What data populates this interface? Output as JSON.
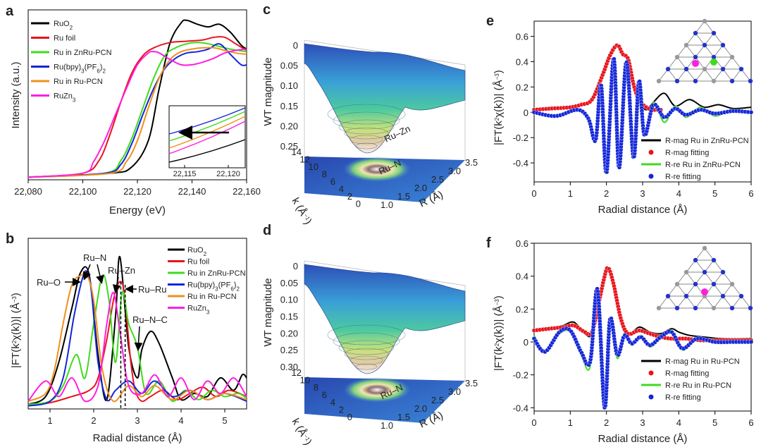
{
  "figure": {
    "panel_labels": [
      "a",
      "b",
      "c",
      "d",
      "e",
      "f"
    ],
    "colors": {
      "RuO2": "#000000",
      "Ru foil": "#e8141c",
      "Ru in ZnRu-PCN": "#3ddc1c",
      "Ru(bpy)3(PF6)2": "#1426d8",
      "Ru in Ru-PCN": "#f0901c",
      "RuZn3": "#ff1ee0"
    }
  },
  "legend_entries": [
    "RuO2",
    "Ru foil",
    "Ru in ZnRu-PCN",
    "Ru(bpy)3(PF6)2",
    "Ru in Ru-PCN",
    "RuZn3"
  ],
  "chart_data": [
    {
      "id": "a",
      "type": "line",
      "xlabel": "Energy (eV)",
      "ylabel": "Intensity (a.u.)",
      "xlim": [
        22080,
        22160
      ],
      "ylim": [
        0,
        1.3
      ],
      "xticks": [
        "22,080",
        "22,100",
        "22,120",
        "22,140",
        "22,160"
      ],
      "series": [
        {
          "name": "RuO2",
          "x": [
            22080,
            22110,
            22118,
            22124,
            22128,
            22132,
            22136,
            22138,
            22142,
            22146,
            22150,
            22154,
            22158,
            22160
          ],
          "y": [
            0.02,
            0.05,
            0.1,
            0.3,
            0.7,
            1.05,
            1.2,
            1.22,
            1.19,
            1.17,
            1.19,
            1.13,
            1.03,
            1.0
          ]
        },
        {
          "name": "Ru foil",
          "x": [
            22080,
            22100,
            22106,
            22110,
            22114,
            22118,
            22122,
            22126,
            22132,
            22138,
            22144,
            22148,
            22152,
            22156,
            22160
          ],
          "y": [
            0.02,
            0.05,
            0.15,
            0.35,
            0.6,
            0.82,
            0.95,
            1.01,
            1.05,
            1.06,
            1.07,
            1.09,
            1.09,
            1.04,
            0.99
          ]
        },
        {
          "name": "Ru in ZnRu-PCN",
          "x": [
            22080,
            22108,
            22114,
            22118,
            22122,
            22126,
            22130,
            22134,
            22138,
            22142,
            22146,
            22150,
            22154,
            22160
          ],
          "y": [
            0.02,
            0.05,
            0.15,
            0.32,
            0.55,
            0.78,
            0.95,
            1.01,
            1.04,
            1.05,
            1.04,
            1.02,
            1.0,
            0.98
          ]
        },
        {
          "name": "Ru(bpy)3(PF6)2",
          "x": [
            22080,
            22108,
            22114,
            22118,
            22122,
            22126,
            22130,
            22134,
            22138,
            22142,
            22146,
            22150,
            22154,
            22158,
            22160
          ],
          "y": [
            0.02,
            0.05,
            0.12,
            0.28,
            0.5,
            0.7,
            0.85,
            0.93,
            0.97,
            0.98,
            1.0,
            1.04,
            0.96,
            0.88,
            0.88
          ]
        },
        {
          "name": "Ru in Ru-PCN",
          "x": [
            22080,
            22110,
            22116,
            22120,
            22124,
            22128,
            22132,
            22136,
            22140,
            22144,
            22148,
            22152,
            22156,
            22160
          ],
          "y": [
            0.02,
            0.05,
            0.14,
            0.3,
            0.55,
            0.78,
            0.92,
            0.98,
            1.0,
            1.01,
            1.01,
            0.99,
            0.97,
            0.96
          ]
        },
        {
          "name": "RuZn3",
          "x": [
            22080,
            22100,
            22104,
            22108,
            22112,
            22116,
            22120,
            22124,
            22126,
            22128,
            22132,
            22136,
            22140,
            22144,
            22148,
            22152,
            22156,
            22160
          ],
          "y": [
            0.02,
            0.05,
            0.14,
            0.3,
            0.5,
            0.7,
            0.88,
            0.97,
            0.98,
            0.97,
            0.92,
            0.88,
            0.88,
            0.9,
            0.93,
            0.97,
            0.99,
            1.0
          ]
        }
      ],
      "inset": {
        "xticks": [
          "22,115",
          "22,120"
        ],
        "arrow": "leftward"
      }
    },
    {
      "id": "b",
      "type": "line",
      "xlabel": "Radial distance (Å)",
      "ylabel": "|FT(k²χ(k))| (Å⁻³)",
      "xlim": [
        0.5,
        5.5
      ],
      "ylim": [
        0,
        1.1
      ],
      "xticks": [
        "1",
        "2",
        "3",
        "4",
        "5"
      ],
      "annotations": [
        "Ru–O",
        "Ru–N",
        "Ru–Zn",
        "Ru–Ru",
        "Ru–N–C"
      ],
      "series": [
        {
          "name": "RuO2",
          "x": [
            0.5,
            0.9,
            1.2,
            1.5,
            1.7,
            1.9,
            2.1,
            2.3,
            2.5,
            2.6,
            2.8,
            3.0,
            3.1,
            3.3,
            3.5,
            3.8,
            4.0,
            4.3,
            4.6,
            4.9,
            5.2,
            5.4,
            5.5
          ],
          "y": [
            0.03,
            0.08,
            0.3,
            0.65,
            0.88,
            0.86,
            0.35,
            0.06,
            0.6,
            0.98,
            0.4,
            0.2,
            0.38,
            0.5,
            0.42,
            0.2,
            0.06,
            0.1,
            0.08,
            0.2,
            0.12,
            0.22,
            0.2
          ]
        },
        {
          "name": "Ru foil",
          "x": [
            0.5,
            1.0,
            1.5,
            1.9,
            2.1,
            2.3,
            2.45,
            2.55,
            2.62,
            2.68,
            2.75,
            2.85,
            2.95,
            3.1,
            3.3,
            3.6,
            3.9,
            4.2,
            4.5,
            4.8,
            5.1,
            5.5
          ],
          "y": [
            0.02,
            0.04,
            0.08,
            0.12,
            0.2,
            0.45,
            0.7,
            0.8,
            0.82,
            0.78,
            0.6,
            0.3,
            0.12,
            0.05,
            0.08,
            0.12,
            0.06,
            0.1,
            0.14,
            0.08,
            0.12,
            0.08
          ]
        },
        {
          "name": "Ru in ZnRu-PCN",
          "x": [
            0.5,
            1.0,
            1.3,
            1.6,
            1.8,
            2.0,
            2.2,
            2.35,
            2.5,
            2.65,
            2.8,
            3.0,
            3.2,
            3.5,
            3.8,
            4.1,
            4.4,
            4.7,
            5.0,
            5.3,
            5.5
          ],
          "y": [
            0.03,
            0.05,
            0.15,
            0.35,
            0.2,
            0.55,
            0.86,
            0.7,
            0.3,
            0.75,
            0.55,
            0.4,
            0.1,
            0.18,
            0.05,
            0.12,
            0.06,
            0.12,
            0.08,
            0.1,
            0.07
          ]
        },
        {
          "name": "Ru(bpy)3(PF6)2",
          "x": [
            0.5,
            1.0,
            1.3,
            1.55,
            1.75,
            1.85,
            1.95,
            2.1,
            2.3,
            2.5,
            2.8,
            3.1,
            3.4,
            3.8,
            4.2,
            4.6,
            5.0,
            5.5
          ],
          "y": [
            0.02,
            0.05,
            0.2,
            0.6,
            0.85,
            0.88,
            0.75,
            0.3,
            0.06,
            0.12,
            0.18,
            0.1,
            0.18,
            0.08,
            0.12,
            0.06,
            0.1,
            0.05
          ]
        },
        {
          "name": "Ru in Ru-PCN",
          "x": [
            0.5,
            0.9,
            1.1,
            1.3,
            1.5,
            1.7,
            1.85,
            2.0,
            2.2,
            2.45,
            2.8,
            3.1,
            3.4,
            3.8,
            4.2,
            4.6,
            5.0,
            5.5
          ],
          "y": [
            0.05,
            0.1,
            0.25,
            0.55,
            0.8,
            0.86,
            0.86,
            0.7,
            0.25,
            0.05,
            0.15,
            0.08,
            0.15,
            0.06,
            0.12,
            0.06,
            0.1,
            0.06
          ]
        },
        {
          "name": "RuZn3",
          "x": [
            0.5,
            0.9,
            1.2,
            1.5,
            1.8,
            2.1,
            2.3,
            2.45,
            2.6,
            2.8,
            3.1,
            3.4,
            3.7,
            4.0,
            4.3,
            4.6,
            4.9,
            5.2,
            5.5
          ],
          "y": [
            0.05,
            0.18,
            0.08,
            0.2,
            0.05,
            0.15,
            0.55,
            0.75,
            0.5,
            0.15,
            0.1,
            0.22,
            0.08,
            0.2,
            0.06,
            0.18,
            0.1,
            0.2,
            0.08
          ]
        }
      ]
    },
    {
      "id": "c",
      "type": "surface",
      "zlabel": "WT magnitude",
      "xlabel": "R (Å)",
      "ylabel": "k (Å⁻¹)",
      "zticks": [
        "0",
        "0.05",
        "0.10",
        "0.15",
        "0.20",
        "0.25"
      ],
      "kticks": [
        "14",
        "12",
        "10",
        "8",
        "6",
        "4",
        "2",
        "0"
      ],
      "rticks": [
        "1.0",
        "1.5",
        "2.0",
        "2.5",
        "3.0",
        "3.5"
      ],
      "labels": [
        "Ru–Zn",
        "Ru–N"
      ]
    },
    {
      "id": "d",
      "type": "surface",
      "zlabel": "WT magnitude",
      "xlabel": "R (Å)",
      "ylabel": "k (Å⁻¹)",
      "zticks": [
        "0",
        "0.05",
        "0.10",
        "0.15",
        "0.20",
        "0.25",
        "0.30"
      ],
      "kticks": [
        "12",
        "10",
        "8",
        "6",
        "4",
        "2",
        "0"
      ],
      "rticks": [
        "1.0",
        "1.5",
        "2.0",
        "2.5",
        "3.0",
        "3.5"
      ],
      "labels": [
        "Ru–N"
      ]
    },
    {
      "id": "e",
      "type": "line",
      "xlabel": "Radial distance (Å)",
      "ylabel": "|FT(k²χ(k))| (Å⁻³)",
      "xlim": [
        0,
        6
      ],
      "ylim": [
        -0.55,
        0.72
      ],
      "xticks": [
        "0",
        "1",
        "2",
        "3",
        "4",
        "5",
        "6"
      ],
      "yticks": [
        "-0.4",
        "-0.2",
        "0",
        "0.2",
        "0.4",
        "0.6"
      ],
      "legend": [
        "R-mag Ru in ZnRu-PCN",
        "R-mag fitting",
        "R-re Ru in ZnRu-PCN",
        "R-re fitting"
      ],
      "series": [
        {
          "name": "R-mag Ru in ZnRu-PCN",
          "x": [
            0,
            0.5,
            1.0,
            1.3,
            1.6,
            1.9,
            2.1,
            2.3,
            2.45,
            2.6,
            2.75,
            2.9,
            3.1,
            3.3,
            3.6,
            3.9,
            4.3,
            4.7,
            5.1,
            5.5,
            6.0
          ],
          "y": [
            0.02,
            0.04,
            0.03,
            0.06,
            0.1,
            0.3,
            0.45,
            0.53,
            0.45,
            0.42,
            0.2,
            0.08,
            0.02,
            0.08,
            0.15,
            0.05,
            0.1,
            0.04,
            0.06,
            0.03,
            0.04
          ]
        },
        {
          "name": "R-mag fitting",
          "x": [
            0,
            0.5,
            1.0,
            1.3,
            1.6,
            1.9,
            2.1,
            2.3,
            2.45,
            2.6,
            2.75,
            2.9,
            3.1,
            3.3,
            3.5
          ],
          "y": [
            0.02,
            0.03,
            0.04,
            0.06,
            0.1,
            0.3,
            0.45,
            0.53,
            0.46,
            0.42,
            0.22,
            0.1,
            0.04,
            0.02,
            0.02
          ]
        },
        {
          "name": "R-re Ru in ZnRu-PCN",
          "x": [
            0,
            0.6,
            1.2,
            1.5,
            1.7,
            1.85,
            2.0,
            2.2,
            2.35,
            2.55,
            2.75,
            2.9,
            3.05,
            3.3,
            3.6,
            3.9,
            4.2,
            4.6,
            5.0,
            5.5,
            6.0
          ],
          "y": [
            0,
            -0.03,
            0.02,
            -0.05,
            -0.2,
            0.2,
            -0.45,
            0.4,
            -0.4,
            0.38,
            -0.35,
            0.25,
            -0.15,
            0.08,
            -0.08,
            0.05,
            -0.04,
            0.04,
            -0.03,
            0.02,
            0
          ]
        },
        {
          "name": "R-re fitting",
          "x": [
            0,
            0.6,
            1.2,
            1.5,
            1.7,
            1.85,
            2.0,
            2.2,
            2.35,
            2.55,
            2.75,
            2.9,
            3.05,
            3.3,
            3.6,
            3.9,
            4.2,
            4.6,
            5.0,
            5.5,
            6.0
          ],
          "y": [
            0,
            -0.03,
            0.02,
            -0.05,
            -0.22,
            0.22,
            -0.48,
            0.43,
            -0.44,
            0.4,
            -0.36,
            0.25,
            -0.18,
            0.06,
            -0.04,
            0.03,
            -0.02,
            0.02,
            -0.01,
            0.01,
            0
          ]
        }
      ]
    },
    {
      "id": "f",
      "type": "line",
      "xlabel": "Radial distance (Å)",
      "ylabel": "|FT(k²χ(k))| (Å⁻³)",
      "xlim": [
        0,
        6
      ],
      "ylim": [
        -0.42,
        0.6
      ],
      "xticks": [
        "0",
        "1",
        "2",
        "3",
        "4",
        "5",
        "6"
      ],
      "yticks": [
        "-0.4",
        "-0.2",
        "0",
        "0.2",
        "0.4",
        "0.6"
      ],
      "legend": [
        "R-mag Ru in Ru-PCN",
        "R-mag fitting",
        "R-re Ru in Ru-PCN",
        "R-re fitting"
      ],
      "series": [
        {
          "name": "R-mag Ru in Ru-PCN",
          "x": [
            0,
            0.4,
            0.8,
            1.1,
            1.4,
            1.6,
            1.8,
            1.95,
            2.05,
            2.2,
            2.4,
            2.6,
            2.9,
            3.2,
            3.5,
            3.8,
            4.0,
            4.3,
            4.7,
            5.2,
            6.0
          ],
          "y": [
            0.07,
            0.08,
            0.1,
            0.12,
            0.05,
            0.05,
            0.25,
            0.4,
            0.45,
            0.35,
            0.12,
            0.04,
            0.09,
            0.06,
            0.05,
            0.08,
            0.06,
            0.04,
            0.03,
            0.02,
            0.02
          ]
        },
        {
          "name": "R-mag fitting",
          "x": [
            0,
            0.4,
            0.8,
            1.1,
            1.4,
            1.6,
            1.8,
            1.95,
            2.05,
            2.2,
            2.4,
            2.6,
            2.9,
            3.2,
            3.5,
            3.8,
            4.2,
            4.6,
            5.0,
            5.5,
            6.0
          ],
          "y": [
            0.07,
            0.08,
            0.09,
            0.1,
            0.06,
            0.06,
            0.25,
            0.4,
            0.45,
            0.35,
            0.14,
            0.05,
            0.07,
            0.05,
            0.03,
            0.02,
            0.02,
            0.01,
            0.01,
            0.01,
            0.01
          ]
        },
        {
          "name": "R-re Ru in Ru-PCN",
          "x": [
            0,
            0.3,
            0.7,
            1.0,
            1.3,
            1.55,
            1.75,
            1.95,
            2.1,
            2.3,
            2.5,
            2.7,
            2.95,
            3.2,
            3.5,
            3.8,
            4.1,
            4.5,
            5.0,
            5.5,
            6.0
          ],
          "y": [
            0.04,
            -0.05,
            0.05,
            0.06,
            -0.08,
            -0.15,
            0.3,
            -0.4,
            0.12,
            -0.1,
            0.05,
            -0.02,
            0.04,
            -0.03,
            0.02,
            0.07,
            -0.05,
            0.02,
            0,
            0,
            0
          ]
        },
        {
          "name": "R-re fitting",
          "x": [
            0,
            0.3,
            0.7,
            1.0,
            1.3,
            1.55,
            1.75,
            1.95,
            2.1,
            2.3,
            2.5,
            2.7,
            2.95,
            3.2,
            3.5,
            3.8,
            4.1,
            4.5,
            5.0,
            5.5,
            6.0
          ],
          "y": [
            0.02,
            -0.06,
            0.06,
            0.07,
            -0.06,
            -0.12,
            0.32,
            -0.4,
            0.14,
            -0.08,
            0.04,
            -0.01,
            0.03,
            -0.02,
            0.03,
            0.06,
            -0.04,
            0.02,
            0,
            0,
            0
          ]
        }
      ]
    }
  ]
}
